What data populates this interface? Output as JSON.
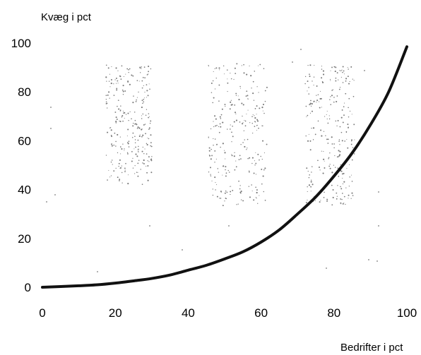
{
  "chart_data": {
    "type": "line",
    "xlabel": "Bedrifter i pct",
    "ylabel": "Kvæg i pct",
    "xlim": [
      0,
      100
    ],
    "ylim": [
      0,
      100
    ],
    "x_ticks": [
      "0",
      "20",
      "40",
      "60",
      "80",
      "100"
    ],
    "y_ticks": [
      "0",
      "20",
      "40",
      "60",
      "80",
      "100"
    ],
    "grid": false,
    "legend": "none",
    "series": [
      {
        "x": [
          0,
          5,
          10,
          15,
          20,
          25,
          30,
          35,
          40,
          45,
          50,
          55,
          60,
          65,
          70,
          75,
          80,
          85,
          90,
          95,
          100
        ],
        "y": [
          0,
          0.3,
          0.6,
          1.0,
          1.7,
          2.6,
          3.6,
          5.0,
          7.0,
          9.0,
          11.6,
          14.5,
          18.5,
          23.5,
          30.0,
          37.0,
          45.5,
          55.0,
          66.5,
          80.0,
          98.5
        ]
      }
    ],
    "line_color": "#111111"
  }
}
